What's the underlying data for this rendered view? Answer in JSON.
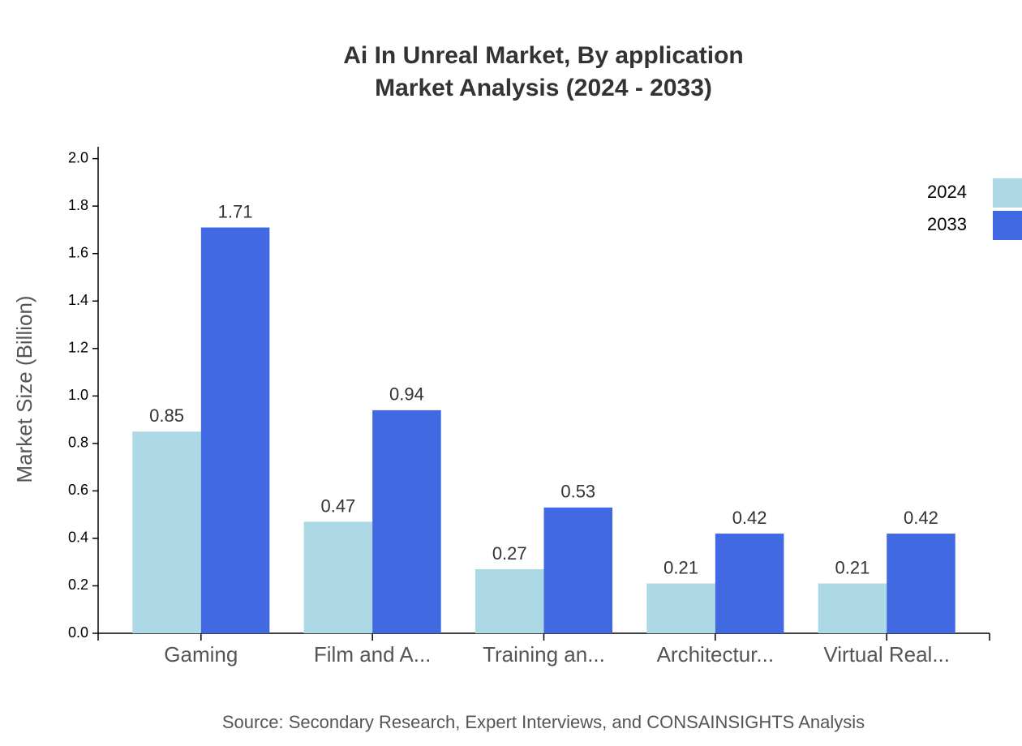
{
  "chart_data": {
    "type": "bar",
    "title": "Ai In Unreal Market, By application",
    "subtitle": "Market Analysis (2024 - 2033)",
    "y_label": "Market Size (Billion)",
    "source": "Source: Secondary Research, Expert Interviews, and CONSAINSIGHTS Analysis",
    "categories": [
      "Gaming",
      "Film and A...",
      "Training an...",
      "Architectur...",
      "Virtual Real..."
    ],
    "series": [
      {
        "name": "2024",
        "color": "#add8e6",
        "values": [
          0.85,
          0.47,
          0.27,
          0.21,
          0.21
        ]
      },
      {
        "name": "2033",
        "color": "#4169e1",
        "values": [
          1.71,
          0.94,
          0.53,
          0.42,
          0.42
        ]
      }
    ],
    "ylim": [
      0,
      2.05
    ],
    "yticks": [
      {
        "value": 0,
        "label": "0.0"
      },
      0.2,
      0.4,
      0.6,
      0.8,
      {
        "value": 1,
        "label": "1.0"
      },
      1.2,
      1.4,
      1.6,
      1.8,
      {
        "value": 2,
        "label": "2.0"
      }
    ],
    "legend": "top-right"
  }
}
